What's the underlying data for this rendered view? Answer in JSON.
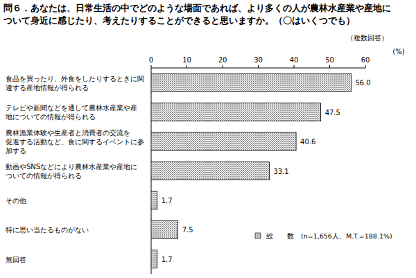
{
  "chart_data": {
    "type": "bar",
    "orientation": "horizontal",
    "title": "問６．あなたは、日常生活の中でどのような場面であれば、より多くの人が農林水産業や産地に\nついて身近に感じたり、考えたりすることができると思いますか。（〇はいくつでも）",
    "subtitle": "（複数回答）",
    "x_label": "(%)",
    "categories": [
      "食品を買ったり、外食をしたりするときに関\n連する産地情報が得られる",
      "テレビや新聞などを通して農林水産業や産\n地についての情報が得られる",
      "農林漁業体験や生産者と消費者の交流を\n促進する活動など、食に関するイベントに参\n加する",
      "動画やSNSなどにより農林水産業や産地に\nついての情報が得られる",
      "その他",
      "特に思い当たるものがない",
      "無回答"
    ],
    "series": [
      {
        "name": "総　　数　(n=1,656人、M.T.=188.1%)",
        "color": "#9a9a9a",
        "values": [
          56.0,
          47.5,
          40.6,
          33.1,
          1.7,
          7.5,
          1.7
        ],
        "value_labels": [
          "56.0",
          "47.5",
          "40.6",
          "33.1",
          "1.7",
          "7.5",
          "1.7"
        ]
      }
    ],
    "xlim": [
      0,
      60
    ],
    "xticks": [
      0,
      10,
      20,
      30,
      40,
      50,
      60
    ],
    "grid": false,
    "legend": "right",
    "data_labels": true
  }
}
